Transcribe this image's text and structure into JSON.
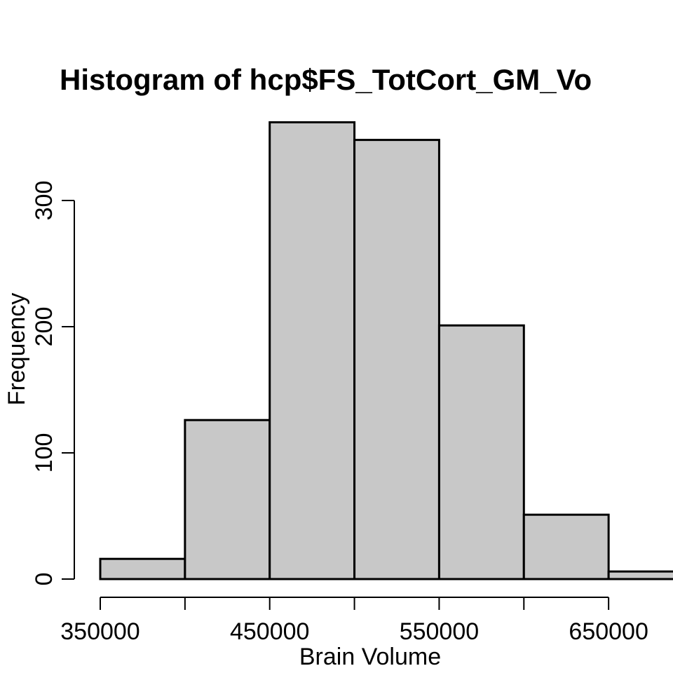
{
  "chart_data": {
    "type": "bar",
    "title": "Histogram of hcp$FS_TotCort_GM_Vo",
    "xlabel": "Brain Volume",
    "ylabel": "Frequency",
    "bins": [
      {
        "start": 350000,
        "end": 400000,
        "value": 16
      },
      {
        "start": 400000,
        "end": 450000,
        "value": 126
      },
      {
        "start": 450000,
        "end": 500000,
        "value": 362
      },
      {
        "start": 500000,
        "end": 550000,
        "value": 348
      },
      {
        "start": 550000,
        "end": 600000,
        "value": 201
      },
      {
        "start": 600000,
        "end": 650000,
        "value": 51
      },
      {
        "start": 650000,
        "end": 700000,
        "value": 6
      }
    ],
    "xticks": [
      350000,
      400000,
      450000,
      500000,
      550000,
      600000,
      650000
    ],
    "xtick_labels": [
      "350000",
      "450000",
      "550000",
      "650000"
    ],
    "yticks": [
      0,
      100,
      200,
      300
    ],
    "yticks_labels": [
      "0",
      "100",
      "200",
      "300"
    ],
    "bar_color": "#c8c8c8",
    "ylim": [
      0,
      362
    ],
    "xlim": [
      350000,
      700000
    ]
  }
}
